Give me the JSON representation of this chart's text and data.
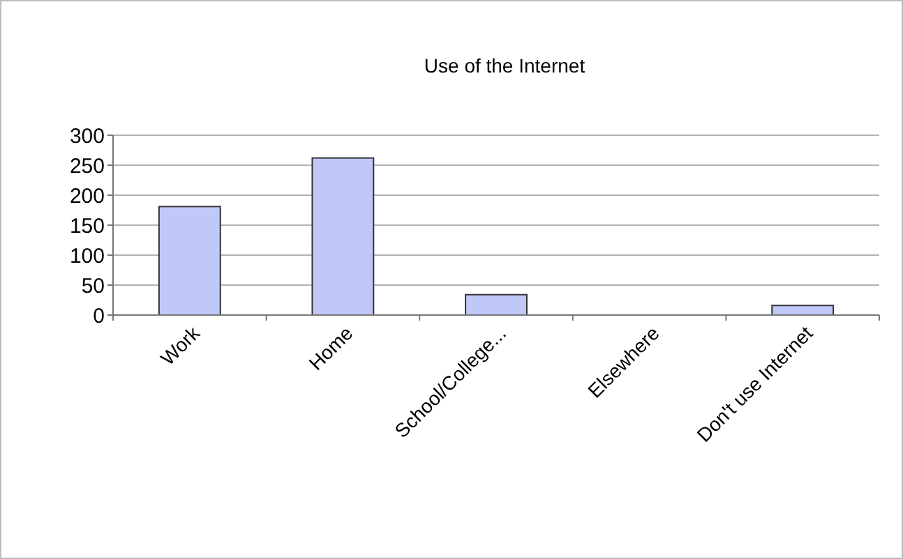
{
  "chart_data": {
    "type": "bar",
    "title": "Use of the Internet",
    "categories": [
      "Work",
      "Home",
      "School/College...",
      "Elsewhere",
      "Don't use Internet"
    ],
    "values": [
      181,
      262,
      34,
      0,
      16
    ],
    "color": "#c0c8f8",
    "ylim": [
      0,
      300
    ],
    "yticks": [
      0,
      50,
      100,
      150,
      200,
      250,
      300
    ],
    "grid": "y"
  }
}
